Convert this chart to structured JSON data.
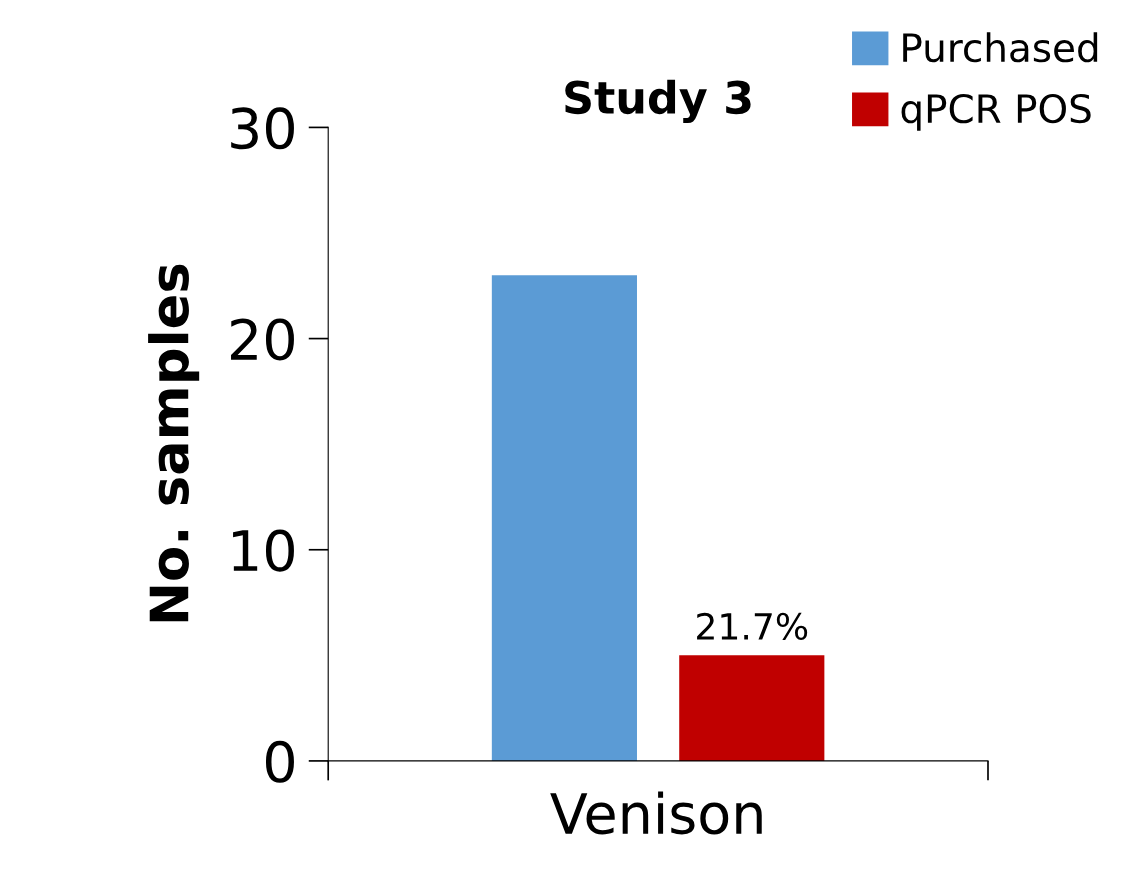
{
  "chart_data": {
    "type": "bar",
    "title": "Study 3",
    "ylabel": "No. samples",
    "categories": [
      "Venison"
    ],
    "series": [
      {
        "name": "Purchased",
        "color": "#5b9bd5",
        "values": [
          23
        ]
      },
      {
        "name": "qPCR POS",
        "color": "#c00000",
        "values": [
          5
        ]
      }
    ],
    "annotations": [
      "21.7%"
    ],
    "ylim": [
      0,
      30
    ],
    "yticks": [
      0,
      10,
      20,
      30
    ],
    "grid": false,
    "legend": "top right"
  }
}
